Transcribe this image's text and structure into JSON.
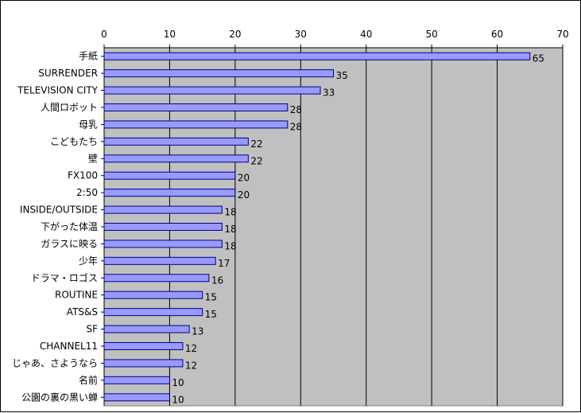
{
  "chart_data": {
    "type": "bar",
    "orientation": "horizontal",
    "categories": [
      "手紙",
      "SURRENDER",
      "TELEVISION CITY",
      "人間ロボット",
      "母乳",
      "こどもたち",
      "壁",
      "FX100",
      "2:50",
      "INSIDE/OUTSIDE",
      "下がった体温",
      "ガラスに映る",
      "少年",
      "ドラマ・ロゴス",
      "ROUTINE",
      "ATS&S",
      "SF",
      "CHANNEL11",
      "じゃあ、さようなら",
      "名前",
      "公園の裏の黒い蝉"
    ],
    "values": [
      65,
      35,
      33,
      28,
      28,
      22,
      22,
      20,
      20,
      18,
      18,
      18,
      17,
      16,
      15,
      15,
      13,
      12,
      12,
      10,
      10
    ],
    "data_labels": [
      "65",
      "35",
      "33",
      "28",
      "28",
      "22",
      "22",
      "20",
      "20",
      "18",
      "18",
      "18",
      "17",
      "16",
      "15",
      "15",
      "13",
      "12",
      "12",
      "10",
      "10"
    ],
    "xlim": [
      0,
      70
    ],
    "xticks": [
      "0",
      "10",
      "20",
      "30",
      "40",
      "50",
      "60",
      "70"
    ],
    "x_axis_position": "top",
    "grid": true,
    "legend": "none",
    "colors": {
      "bar_fill": "#9999ff",
      "bar_stroke": "#000080",
      "plot_bg": "#c0c0c0",
      "grid": "#000000"
    }
  }
}
